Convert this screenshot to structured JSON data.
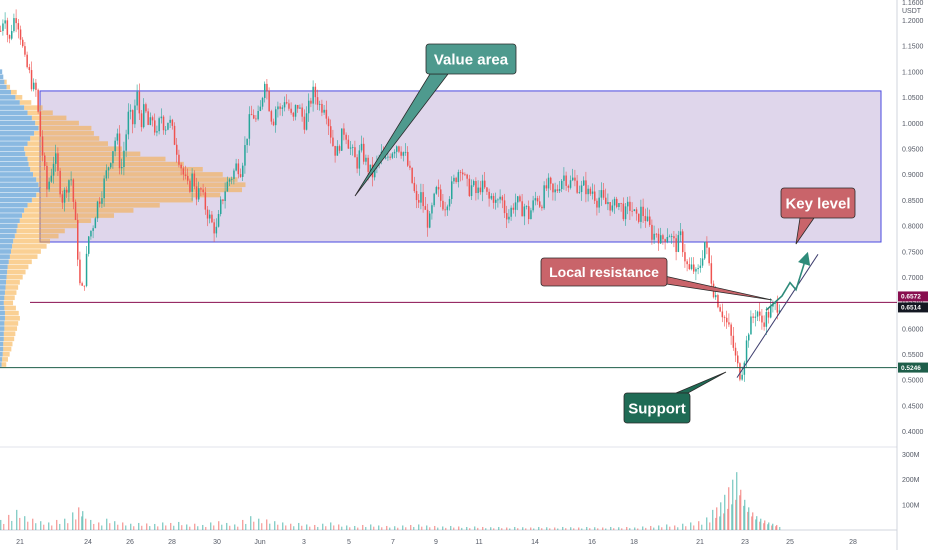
{
  "chart_data": {
    "type": "candlestick",
    "currency": "USDT",
    "currency_prefix": "1.1600",
    "y_ticks": [
      "1.2000",
      "1.1500",
      "1.1000",
      "1.0500",
      "1.0000",
      "0.9500",
      "0.9000",
      "0.8500",
      "0.8000",
      "0.7500",
      "0.7000",
      "0.6500",
      "0.6000",
      "0.5500",
      "0.5000",
      "0.4500",
      "0.4000"
    ],
    "y_tick_values": [
      1.2,
      1.15,
      1.1,
      1.05,
      1.0,
      0.95,
      0.9,
      0.85,
      0.8,
      0.75,
      0.7,
      0.65,
      0.6,
      0.55,
      0.5,
      0.45,
      0.4
    ],
    "ylim": [
      0.37,
      1.24
    ],
    "x_ticks": [
      "21",
      "24",
      "26",
      "28",
      "30",
      "Jun",
      "3",
      "5",
      "7",
      "9",
      "11",
      "14",
      "16",
      "18",
      "21",
      "23",
      "25",
      "28"
    ],
    "volume_ticks": [
      "300M",
      "200M",
      "100M"
    ],
    "volume_tick_values": [
      300,
      200,
      100
    ],
    "volume_ylim": [
      0,
      330
    ],
    "value_area": {
      "high": 1.063,
      "low": 0.769
    },
    "resistance_level": 0.6514,
    "support_level": 0.5246,
    "price_tags": [
      {
        "label": "0.6572",
        "value": 0.6572,
        "color": "#880e4f"
      },
      {
        "label": "0.6514",
        "value": 0.6514,
        "color": "#131722"
      },
      {
        "label": "0.5246",
        "value": 0.5246,
        "color": "#1e5e4a"
      }
    ],
    "annotations": [
      {
        "text": "Value area",
        "color": "#4e9a8e"
      },
      {
        "text": "Key level",
        "color": "#c9646a"
      },
      {
        "text": "Local resistance",
        "color": "#c9646a"
      },
      {
        "text": "Support",
        "color": "#1f6b55"
      }
    ],
    "price_path": [
      [
        0,
        1.18
      ],
      [
        4,
        1.22
      ],
      [
        8,
        1.15
      ],
      [
        12,
        1.2
      ],
      [
        16,
        1.21
      ],
      [
        20,
        1.17
      ],
      [
        24,
        1.12
      ],
      [
        28,
        1.1
      ],
      [
        32,
        1.07
      ],
      [
        36,
        1.06
      ],
      [
        38,
        1.0
      ],
      [
        40,
        0.97
      ],
      [
        43,
        0.92
      ],
      [
        46,
        0.87
      ],
      [
        50,
        0.9
      ],
      [
        54,
        0.94
      ],
      [
        58,
        0.89
      ],
      [
        62,
        0.85
      ],
      [
        66,
        0.88
      ],
      [
        70,
        0.9
      ],
      [
        74,
        0.82
      ],
      [
        78,
        0.72
      ],
      [
        80,
        0.66
      ],
      [
        84,
        0.7
      ],
      [
        88,
        0.78
      ],
      [
        92,
        0.8
      ],
      [
        96,
        0.84
      ],
      [
        100,
        0.86
      ],
      [
        104,
        0.89
      ],
      [
        108,
        0.92
      ],
      [
        112,
        0.95
      ],
      [
        116,
        0.98
      ],
      [
        120,
        0.9
      ],
      [
        124,
        0.96
      ],
      [
        128,
        1.02
      ],
      [
        132,
        1.0
      ],
      [
        136,
        1.06
      ],
      [
        140,
        1.0
      ],
      [
        144,
        1.03
      ],
      [
        148,
        0.99
      ],
      [
        152,
        1.01
      ],
      [
        156,
        0.97
      ],
      [
        160,
        1.02
      ],
      [
        164,
        0.99
      ],
      [
        168,
        1.01
      ],
      [
        172,
        0.98
      ],
      [
        176,
        0.95
      ],
      [
        180,
        0.92
      ],
      [
        184,
        0.89
      ],
      [
        188,
        0.87
      ],
      [
        192,
        0.9
      ],
      [
        196,
        0.86
      ],
      [
        200,
        0.87
      ],
      [
        204,
        0.84
      ],
      [
        208,
        0.82
      ],
      [
        212,
        0.8
      ],
      [
        216,
        0.79
      ],
      [
        220,
        0.84
      ],
      [
        224,
        0.87
      ],
      [
        228,
        0.89
      ],
      [
        232,
        0.9
      ],
      [
        236,
        0.92
      ],
      [
        240,
        0.91
      ],
      [
        244,
        0.95
      ],
      [
        248,
        1.0
      ],
      [
        252,
        1.02
      ],
      [
        256,
        1.0
      ],
      [
        260,
        1.03
      ],
      [
        264,
        1.09
      ],
      [
        268,
        1.04
      ],
      [
        272,
        1.0
      ],
      [
        276,
        1.04
      ],
      [
        280,
        1.02
      ],
      [
        284,
        1.05
      ],
      [
        288,
        1.03
      ],
      [
        292,
        1.0
      ],
      [
        296,
        1.04
      ],
      [
        300,
        1.02
      ],
      [
        304,
        1.0
      ],
      [
        308,
        1.03
      ],
      [
        312,
        1.06
      ],
      [
        316,
        1.05
      ],
      [
        320,
        1.03
      ],
      [
        324,
        1.04
      ],
      [
        328,
        1.0
      ],
      [
        332,
        0.96
      ],
      [
        336,
        0.94
      ],
      [
        340,
        0.97
      ],
      [
        344,
        0.99
      ],
      [
        348,
        0.96
      ],
      [
        352,
        0.94
      ],
      [
        356,
        0.92
      ],
      [
        360,
        0.95
      ],
      [
        364,
        0.93
      ],
      [
        368,
        0.91
      ],
      [
        372,
        0.9
      ],
      [
        376,
        0.92
      ],
      [
        380,
        0.94
      ],
      [
        384,
        0.92
      ],
      [
        388,
        0.94
      ],
      [
        392,
        0.95
      ],
      [
        396,
        0.96
      ],
      [
        400,
        0.95
      ],
      [
        404,
        0.94
      ],
      [
        408,
        0.91
      ],
      [
        412,
        0.88
      ],
      [
        416,
        0.84
      ],
      [
        420,
        0.86
      ],
      [
        424,
        0.83
      ],
      [
        428,
        0.8
      ],
      [
        432,
        0.84
      ],
      [
        436,
        0.87
      ],
      [
        440,
        0.85
      ],
      [
        444,
        0.84
      ],
      [
        448,
        0.86
      ],
      [
        452,
        0.88
      ],
      [
        456,
        0.9
      ],
      [
        460,
        0.92
      ],
      [
        464,
        0.89
      ],
      [
        468,
        0.87
      ],
      [
        472,
        0.88
      ],
      [
        476,
        0.86
      ],
      [
        480,
        0.88
      ],
      [
        484,
        0.87
      ],
      [
        488,
        0.85
      ],
      [
        492,
        0.86
      ],
      [
        496,
        0.84
      ],
      [
        500,
        0.86
      ],
      [
        504,
        0.83
      ],
      [
        508,
        0.82
      ],
      [
        512,
        0.84
      ],
      [
        516,
        0.85
      ],
      [
        520,
        0.83
      ],
      [
        524,
        0.84
      ],
      [
        528,
        0.82
      ],
      [
        532,
        0.84
      ],
      [
        536,
        0.86
      ],
      [
        540,
        0.84
      ],
      [
        544,
        0.87
      ],
      [
        548,
        0.88
      ],
      [
        552,
        0.86
      ],
      [
        556,
        0.87
      ],
      [
        560,
        0.89
      ],
      [
        564,
        0.9
      ],
      [
        568,
        0.88
      ],
      [
        572,
        0.89
      ],
      [
        576,
        0.88
      ],
      [
        580,
        0.87
      ],
      [
        584,
        0.88
      ],
      [
        588,
        0.86
      ],
      [
        592,
        0.87
      ],
      [
        596,
        0.85
      ],
      [
        600,
        0.86
      ],
      [
        604,
        0.84
      ],
      [
        608,
        0.85
      ],
      [
        612,
        0.83
      ],
      [
        616,
        0.85
      ],
      [
        620,
        0.84
      ],
      [
        624,
        0.82
      ],
      [
        628,
        0.84
      ],
      [
        632,
        0.83
      ],
      [
        636,
        0.81
      ],
      [
        640,
        0.83
      ],
      [
        644,
        0.82
      ],
      [
        648,
        0.8
      ],
      [
        652,
        0.78
      ],
      [
        656,
        0.79
      ],
      [
        660,
        0.77
      ],
      [
        664,
        0.78
      ],
      [
        668,
        0.79
      ],
      [
        672,
        0.77
      ],
      [
        676,
        0.76
      ],
      [
        680,
        0.78
      ],
      [
        684,
        0.74
      ],
      [
        688,
        0.71
      ],
      [
        692,
        0.72
      ],
      [
        696,
        0.7
      ],
      [
        700,
        0.73
      ],
      [
        704,
        0.77
      ],
      [
        708,
        0.73
      ],
      [
        712,
        0.68
      ],
      [
        716,
        0.66
      ],
      [
        720,
        0.64
      ],
      [
        724,
        0.62
      ],
      [
        728,
        0.6
      ],
      [
        732,
        0.57
      ],
      [
        736,
        0.53
      ],
      [
        740,
        0.51
      ],
      [
        744,
        0.55
      ],
      [
        748,
        0.6
      ],
      [
        752,
        0.62
      ],
      [
        756,
        0.64
      ],
      [
        760,
        0.61
      ],
      [
        764,
        0.62
      ],
      [
        768,
        0.63
      ],
      [
        772,
        0.64
      ],
      [
        776,
        0.645
      ],
      [
        780,
        0.652
      ]
    ],
    "volume_profile": [
      [
        1.1,
        4,
        0
      ],
      [
        1.09,
        6,
        0
      ],
      [
        1.08,
        8,
        2
      ],
      [
        1.07,
        12,
        3
      ],
      [
        1.06,
        20,
        5
      ],
      [
        1.05,
        28,
        6
      ],
      [
        1.04,
        36,
        10
      ],
      [
        1.03,
        44,
        16
      ],
      [
        1.02,
        50,
        22
      ],
      [
        1.01,
        58,
        30
      ],
      [
        1.0,
        64,
        38
      ],
      [
        0.99,
        70,
        46
      ],
      [
        0.98,
        62,
        52
      ],
      [
        0.97,
        55,
        60
      ],
      [
        0.96,
        50,
        70
      ],
      [
        0.95,
        44,
        85
      ],
      [
        0.94,
        46,
        100
      ],
      [
        0.93,
        50,
        120
      ],
      [
        0.92,
        52,
        135
      ],
      [
        0.91,
        55,
        150
      ],
      [
        0.9,
        60,
        165
      ],
      [
        0.89,
        66,
        175
      ],
      [
        0.88,
        70,
        180
      ],
      [
        0.87,
        72,
        176
      ],
      [
        0.86,
        66,
        160
      ],
      [
        0.85,
        58,
        140
      ],
      [
        0.84,
        50,
        115
      ],
      [
        0.83,
        44,
        95
      ],
      [
        0.82,
        40,
        80
      ],
      [
        0.81,
        36,
        62
      ],
      [
        0.8,
        32,
        52
      ],
      [
        0.79,
        30,
        42
      ],
      [
        0.78,
        27,
        38
      ],
      [
        0.77,
        24,
        32
      ],
      [
        0.76,
        22,
        30
      ],
      [
        0.75,
        20,
        26
      ],
      [
        0.74,
        18,
        24
      ],
      [
        0.73,
        16,
        20
      ],
      [
        0.72,
        14,
        18
      ],
      [
        0.71,
        13,
        16
      ],
      [
        0.7,
        12,
        14
      ],
      [
        0.69,
        11,
        12
      ],
      [
        0.68,
        10,
        11
      ],
      [
        0.67,
        9,
        10
      ],
      [
        0.66,
        8,
        9
      ],
      [
        0.65,
        7,
        8
      ],
      [
        0.64,
        8,
        10
      ],
      [
        0.63,
        9,
        12
      ],
      [
        0.62,
        9,
        13
      ],
      [
        0.61,
        8,
        12
      ],
      [
        0.6,
        8,
        11
      ],
      [
        0.59,
        7,
        10
      ],
      [
        0.58,
        7,
        9
      ],
      [
        0.57,
        6,
        8
      ],
      [
        0.56,
        6,
        7
      ],
      [
        0.55,
        5,
        6
      ],
      [
        0.54,
        4,
        5
      ],
      [
        0.53,
        3,
        4
      ]
    ],
    "volume_bars": [
      [
        0,
        40
      ],
      [
        8,
        60
      ],
      [
        16,
        80
      ],
      [
        24,
        55
      ],
      [
        32,
        45
      ],
      [
        40,
        35
      ],
      [
        48,
        30
      ],
      [
        56,
        40
      ],
      [
        64,
        45
      ],
      [
        72,
        70
      ],
      [
        78,
        90
      ],
      [
        82,
        75
      ],
      [
        90,
        40
      ],
      [
        98,
        30
      ],
      [
        106,
        45
      ],
      [
        114,
        35
      ],
      [
        122,
        30
      ],
      [
        130,
        25
      ],
      [
        138,
        28
      ],
      [
        146,
        26
      ],
      [
        154,
        24
      ],
      [
        162,
        30
      ],
      [
        170,
        28
      ],
      [
        178,
        32
      ],
      [
        186,
        22
      ],
      [
        194,
        25
      ],
      [
        202,
        20
      ],
      [
        210,
        30
      ],
      [
        218,
        35
      ],
      [
        226,
        28
      ],
      [
        234,
        22
      ],
      [
        242,
        40
      ],
      [
        250,
        55
      ],
      [
        258,
        45
      ],
      [
        266,
        42
      ],
      [
        274,
        35
      ],
      [
        282,
        30
      ],
      [
        290,
        25
      ],
      [
        298,
        28
      ],
      [
        306,
        22
      ],
      [
        314,
        20
      ],
      [
        322,
        25
      ],
      [
        330,
        30
      ],
      [
        338,
        22
      ],
      [
        346,
        18
      ],
      [
        354,
        16
      ],
      [
        362,
        20
      ],
      [
        370,
        22
      ],
      [
        378,
        18
      ],
      [
        386,
        16
      ],
      [
        394,
        15
      ],
      [
        402,
        18
      ],
      [
        410,
        20
      ],
      [
        418,
        22
      ],
      [
        426,
        18
      ],
      [
        434,
        16
      ],
      [
        442,
        14
      ],
      [
        450,
        16
      ],
      [
        458,
        14
      ],
      [
        466,
        12
      ],
      [
        474,
        14
      ],
      [
        482,
        12
      ],
      [
        490,
        11
      ],
      [
        498,
        12
      ],
      [
        506,
        10
      ],
      [
        514,
        12
      ],
      [
        522,
        11
      ],
      [
        530,
        10
      ],
      [
        538,
        12
      ],
      [
        546,
        11
      ],
      [
        554,
        10
      ],
      [
        562,
        12
      ],
      [
        570,
        11
      ],
      [
        578,
        10
      ],
      [
        586,
        12
      ],
      [
        594,
        11
      ],
      [
        602,
        10
      ],
      [
        610,
        12
      ],
      [
        618,
        11
      ],
      [
        626,
        12
      ],
      [
        634,
        10
      ],
      [
        642,
        14
      ],
      [
        650,
        16
      ],
      [
        658,
        18
      ],
      [
        666,
        22
      ],
      [
        674,
        18
      ],
      [
        682,
        25
      ],
      [
        690,
        30
      ],
      [
        698,
        35
      ],
      [
        706,
        50
      ],
      [
        712,
        80
      ],
      [
        716,
        90
      ],
      [
        720,
        110
      ],
      [
        724,
        140
      ],
      [
        728,
        170
      ],
      [
        732,
        200
      ],
      [
        736,
        230
      ],
      [
        740,
        160
      ],
      [
        744,
        120
      ],
      [
        748,
        90
      ],
      [
        752,
        70
      ],
      [
        756,
        55
      ],
      [
        760,
        45
      ],
      [
        764,
        38
      ],
      [
        768,
        30
      ],
      [
        772,
        25
      ],
      [
        776,
        20
      ]
    ]
  }
}
